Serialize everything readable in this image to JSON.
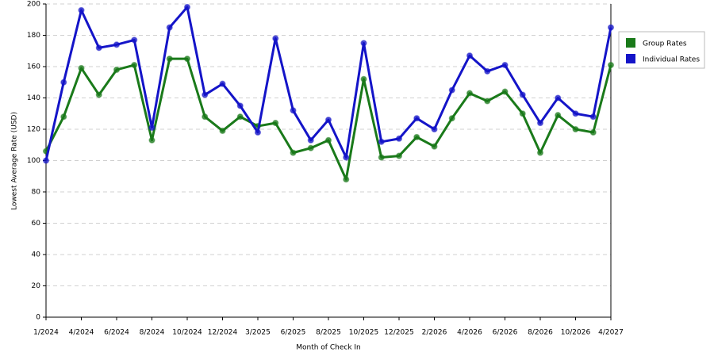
{
  "chart_data": {
    "type": "line",
    "x_label": "Month of Check In",
    "y_label": "Lowest Average Rate (USD)",
    "categories": [
      "1/2024",
      null,
      "4/2024",
      null,
      "6/2024",
      null,
      "8/2024",
      null,
      "10/2024",
      null,
      "12/2024",
      null,
      "3/2025",
      null,
      "6/2025",
      null,
      "8/2025",
      null,
      "10/2025",
      null,
      "12/2025",
      null,
      "2/2026",
      null,
      "4/2026",
      null,
      "6/2026",
      null,
      "8/2026",
      null,
      "10/2026",
      null,
      "4/2027"
    ],
    "series": [
      {
        "name": "Group Rates",
        "color": "#1a7a1a",
        "values": [
          106,
          128,
          159,
          142,
          158,
          161,
          113,
          165,
          165,
          128,
          119,
          128,
          122,
          124,
          105,
          108,
          113,
          88,
          152,
          102,
          103,
          115,
          109,
          127,
          143,
          138,
          144,
          130,
          105,
          129,
          120,
          118,
          161
        ]
      },
      {
        "name": "Individual Rates",
        "color": "#1414c8",
        "values": [
          100,
          150,
          196,
          172,
          174,
          177,
          121,
          185,
          198,
          142,
          149,
          135,
          118,
          178,
          132,
          113,
          126,
          102,
          175,
          112,
          114,
          127,
          120,
          145,
          167,
          157,
          161,
          142,
          124,
          140,
          130,
          128,
          185
        ]
      }
    ],
    "ylim": [
      0,
      200
    ],
    "yticks": [
      0,
      20,
      40,
      60,
      80,
      100,
      120,
      140,
      160,
      180,
      200
    ],
    "grid": true,
    "legend": "right"
  }
}
